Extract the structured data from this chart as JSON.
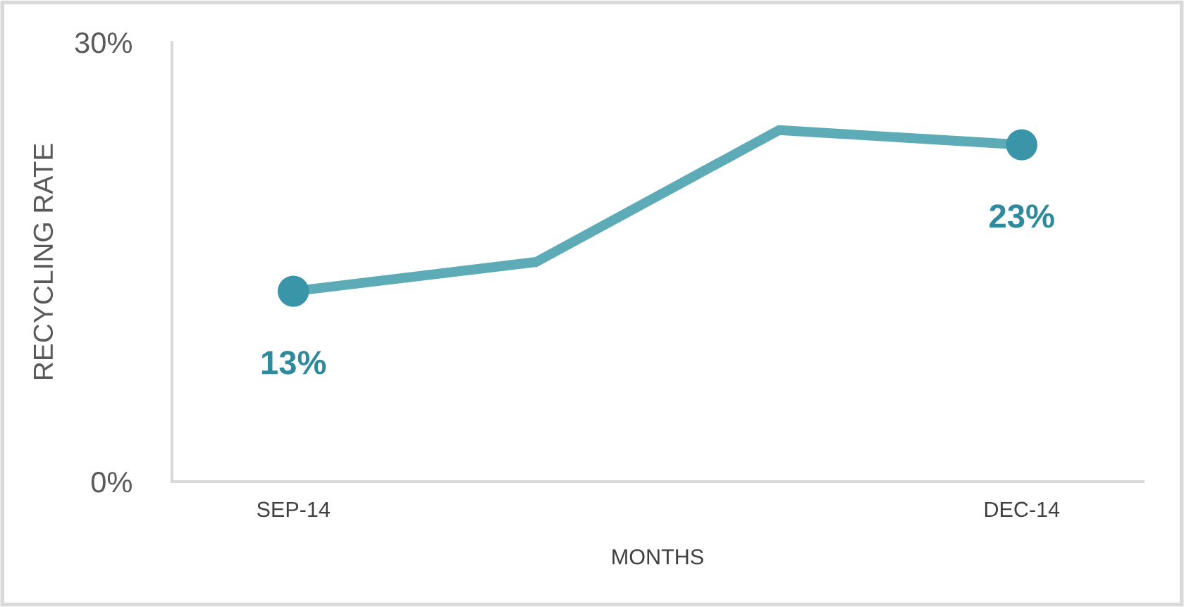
{
  "chart_data": {
    "type": "line",
    "xlabel": "MONTHS",
    "ylabel": "RECYCLING RATE",
    "categories": [
      "SEP-14",
      null,
      null,
      "DEC-14"
    ],
    "series": [
      {
        "color": "#5eabb8",
        "values": [
          13,
          15,
          24,
          23
        ],
        "value_labels": [
          "13%",
          null,
          null,
          "23%"
        ]
      }
    ],
    "ylim": [
      0,
      30
    ],
    "yticks": [
      {
        "value": 0,
        "label": "0%"
      },
      {
        "value": 30,
        "label": "30%"
      }
    ],
    "grid": false,
    "line_style": "solid"
  }
}
